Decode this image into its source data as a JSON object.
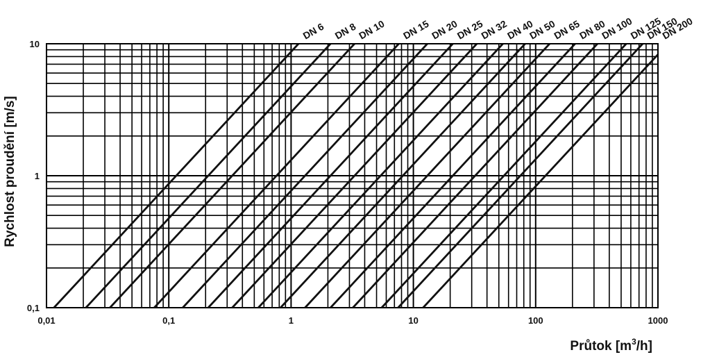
{
  "chart_data": {
    "type": "line",
    "title": "",
    "xlabel": "Průtok [m³/h]",
    "ylabel": "Rychlost proudění [m/s]",
    "x_scale": "log",
    "y_scale": "log",
    "xlim": [
      0.01,
      1000
    ],
    "ylim": [
      0.1,
      10
    ],
    "grid": true,
    "x_ticks": [
      {
        "value": 0.01,
        "label": "0,01"
      },
      {
        "value": 0.1,
        "label": "0,1"
      },
      {
        "value": 1,
        "label": "1"
      },
      {
        "value": 10,
        "label": "10"
      },
      {
        "value": 100,
        "label": "100"
      },
      {
        "value": 1000,
        "label": "1000"
      }
    ],
    "y_ticks": [
      {
        "value": 0.1,
        "label": "0,1"
      },
      {
        "value": 1,
        "label": "1"
      },
      {
        "value": 10,
        "label": "10"
      }
    ],
    "xlabel_base": "Průtok [m",
    "xlabel_sup": "3",
    "xlabel_tail": "/h]",
    "series": [
      {
        "name": "DN 6",
        "x": [
          0.0115,
          1.15
        ],
        "y": [
          0.1,
          10
        ]
      },
      {
        "name": "DN 8",
        "x": [
          0.021,
          2.1
        ],
        "y": [
          0.1,
          10
        ]
      },
      {
        "name": "DN 10",
        "x": [
          0.033,
          3.3
        ],
        "y": [
          0.1,
          10
        ]
      },
      {
        "name": "DN 15",
        "x": [
          0.076,
          7.6
        ],
        "y": [
          0.1,
          10
        ]
      },
      {
        "name": "DN 20",
        "x": [
          0.13,
          13
        ],
        "y": [
          0.1,
          10
        ]
      },
      {
        "name": "DN 25",
        "x": [
          0.21,
          21
        ],
        "y": [
          0.1,
          10
        ]
      },
      {
        "name": "DN 32",
        "x": [
          0.33,
          33
        ],
        "y": [
          0.1,
          10
        ]
      },
      {
        "name": "DN 40",
        "x": [
          0.54,
          54
        ],
        "y": [
          0.1,
          10
        ]
      },
      {
        "name": "DN 50",
        "x": [
          0.82,
          82
        ],
        "y": [
          0.1,
          10
        ]
      },
      {
        "name": "DN 65",
        "x": [
          1.3,
          130
        ],
        "y": [
          0.1,
          10
        ]
      },
      {
        "name": "DN 80",
        "x": [
          2.1,
          210
        ],
        "y": [
          0.1,
          10
        ]
      },
      {
        "name": "DN 100",
        "x": [
          3.2,
          320
        ],
        "y": [
          0.1,
          10
        ]
      },
      {
        "name": "DN 125",
        "x": [
          5.5,
          550
        ],
        "y": [
          0.1,
          10
        ]
      },
      {
        "name": "DN 150",
        "x": [
          7.5,
          750
        ],
        "y": [
          0.1,
          10
        ]
      },
      {
        "name": "DN 200",
        "x": [
          12,
          1000
        ],
        "y": [
          0.1,
          8.3
        ]
      }
    ]
  }
}
